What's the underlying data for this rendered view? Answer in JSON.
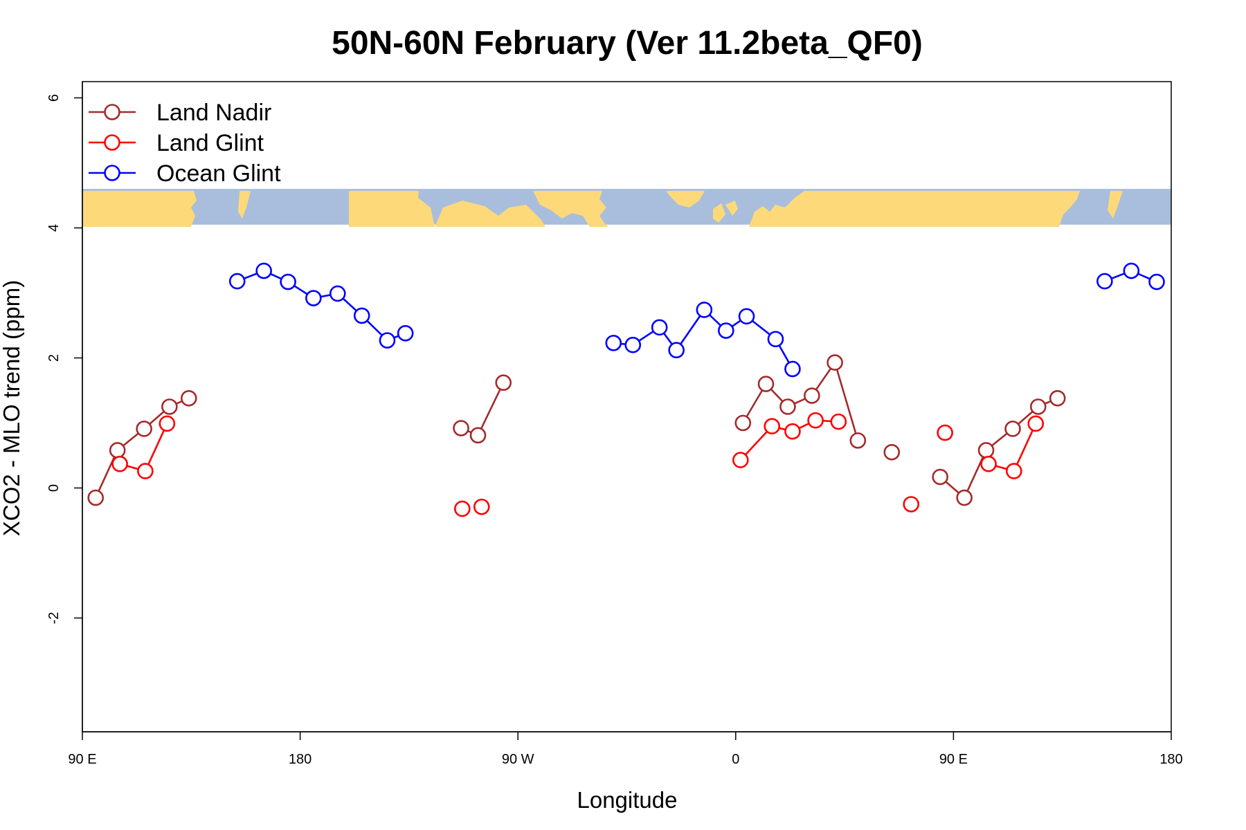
{
  "chart_data": {
    "type": "line",
    "title": "50N-60N February (Ver 11.2beta_QF0)",
    "xlabel": "Longitude",
    "ylabel": "XCO2 - MLO trend (ppm)",
    "xlim": [
      90,
      540
    ],
    "ylim": [
      -3.75,
      6.25
    ],
    "x_ticks": [
      {
        "value": 90,
        "label": "90 E"
      },
      {
        "value": 180,
        "label": "180"
      },
      {
        "value": 270,
        "label": "90 W"
      },
      {
        "value": 360,
        "label": "0"
      },
      {
        "value": 450,
        "label": "90 E"
      },
      {
        "value": 540,
        "label": "180"
      }
    ],
    "y_ticks": [
      {
        "value": -2,
        "label": "-2"
      },
      {
        "value": 0,
        "label": "0"
      },
      {
        "value": 2,
        "label": "2"
      },
      {
        "value": 4,
        "label": "4"
      },
      {
        "value": 6,
        "label": "6"
      }
    ],
    "legend_position": "top-left",
    "background_map": {
      "type": "world-map-strip",
      "latitude_band": "50N-60N",
      "y_range": [
        4.05,
        4.6
      ]
    },
    "series": [
      {
        "name": "Land Nadir",
        "color": "#a52a2a",
        "segments": [
          [
            [
              95.5,
              -0.15
            ],
            [
              104.5,
              0.58
            ],
            [
              115.5,
              0.91
            ],
            [
              126,
              1.25
            ],
            [
              134,
              1.38
            ]
          ],
          [
            [
              246.5,
              0.92
            ],
            [
              253.5,
              0.81
            ],
            [
              264,
              1.62
            ]
          ],
          [
            [
              363,
              1.0
            ],
            [
              372.5,
              1.6
            ],
            [
              381.5,
              1.25
            ],
            [
              391.5,
              1.42
            ],
            [
              401,
              1.93
            ],
            [
              410.5,
              0.73
            ]
          ],
          [
            [
              424.5,
              0.55
            ]
          ],
          [
            [
              444.5,
              0.17
            ],
            [
              454.5,
              -0.15
            ],
            [
              463.5,
              0.58
            ],
            [
              474.5,
              0.91
            ],
            [
              485,
              1.25
            ],
            [
              493,
              1.38
            ]
          ]
        ]
      },
      {
        "name": "Land Glint",
        "color": "#ff0000",
        "segments": [
          [
            [
              105.5,
              0.37
            ],
            [
              116,
              0.26
            ],
            [
              125,
              0.99
            ]
          ],
          [
            [
              247,
              -0.32
            ]
          ],
          [
            [
              255,
              -0.29
            ]
          ],
          [
            [
              362,
              0.43
            ],
            [
              375,
              0.95
            ],
            [
              383.5,
              0.87
            ],
            [
              393,
              1.04
            ],
            [
              402.5,
              1.02
            ]
          ],
          [
            [
              446.5,
              0.85
            ]
          ],
          [
            [
              432.5,
              -0.25
            ]
          ],
          [
            [
              464.5,
              0.37
            ],
            [
              475,
              0.26
            ],
            [
              484,
              0.99
            ]
          ]
        ]
      },
      {
        "name": "Ocean Glint",
        "color": "#0000ff",
        "segments": [
          [
            [
              154,
              3.18
            ],
            [
              165,
              3.34
            ],
            [
              175,
              3.17
            ],
            [
              185.5,
              2.92
            ],
            [
              195.5,
              2.99
            ],
            [
              205.5,
              2.65
            ],
            [
              216,
              2.27
            ],
            [
              223.5,
              2.38
            ]
          ],
          [
            [
              309.5,
              2.23
            ],
            [
              317.5,
              2.2
            ],
            [
              328.5,
              2.47
            ],
            [
              335.5,
              2.12
            ],
            [
              347,
              2.74
            ],
            [
              356,
              2.42
            ],
            [
              364.5,
              2.64
            ],
            [
              376.5,
              2.29
            ],
            [
              383.5,
              1.83
            ]
          ],
          [
            [
              512.5,
              3.18
            ],
            [
              523.5,
              3.34
            ],
            [
              534,
              3.17
            ]
          ]
        ]
      }
    ]
  }
}
